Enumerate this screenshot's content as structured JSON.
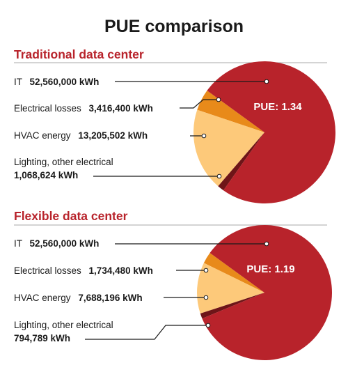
{
  "title": "PUE comparison",
  "colors": {
    "it": "#b8232b",
    "electrical": "#e88a1a",
    "hvac": "#fdc97a",
    "lighting": "#6e1518",
    "section_title": "#b8232b",
    "rule": "#aaaaaa"
  },
  "chart_data": [
    {
      "type": "pie",
      "title": "Traditional data center",
      "annotation": "PUE: 1.34",
      "series": [
        {
          "name": "IT",
          "label": "IT",
          "value_text": "52,560,000 kWh",
          "value": 52560000
        },
        {
          "name": "Electrical losses",
          "label": "Electrical losses",
          "value_text": "3,416,400 kWh",
          "value": 3416400
        },
        {
          "name": "HVAC energy",
          "label": "HVAC energy",
          "value_text": "13,205,502 kWh",
          "value": 13205502
        },
        {
          "name": "Lighting, other electrical",
          "label": "Lighting, other electrical",
          "value_text": "1,068,624 kWh",
          "value": 1068624
        }
      ]
    },
    {
      "type": "pie",
      "title": "Flexible data center",
      "annotation": "PUE: 1.19",
      "series": [
        {
          "name": "IT",
          "label": "IT",
          "value_text": "52,560,000 kWh",
          "value": 52560000
        },
        {
          "name": "Electrical losses",
          "label": "Electrical losses",
          "value_text": "1,734,480 kWh",
          "value": 1734480
        },
        {
          "name": "HVAC energy",
          "label": "HVAC energy",
          "value_text": "7,688,196 kWh",
          "value": 7688196
        },
        {
          "name": "Lighting, other electrical",
          "label": "Lighting, other electrical",
          "value_text": "794,789 kWh",
          "value": 794789
        }
      ]
    }
  ]
}
